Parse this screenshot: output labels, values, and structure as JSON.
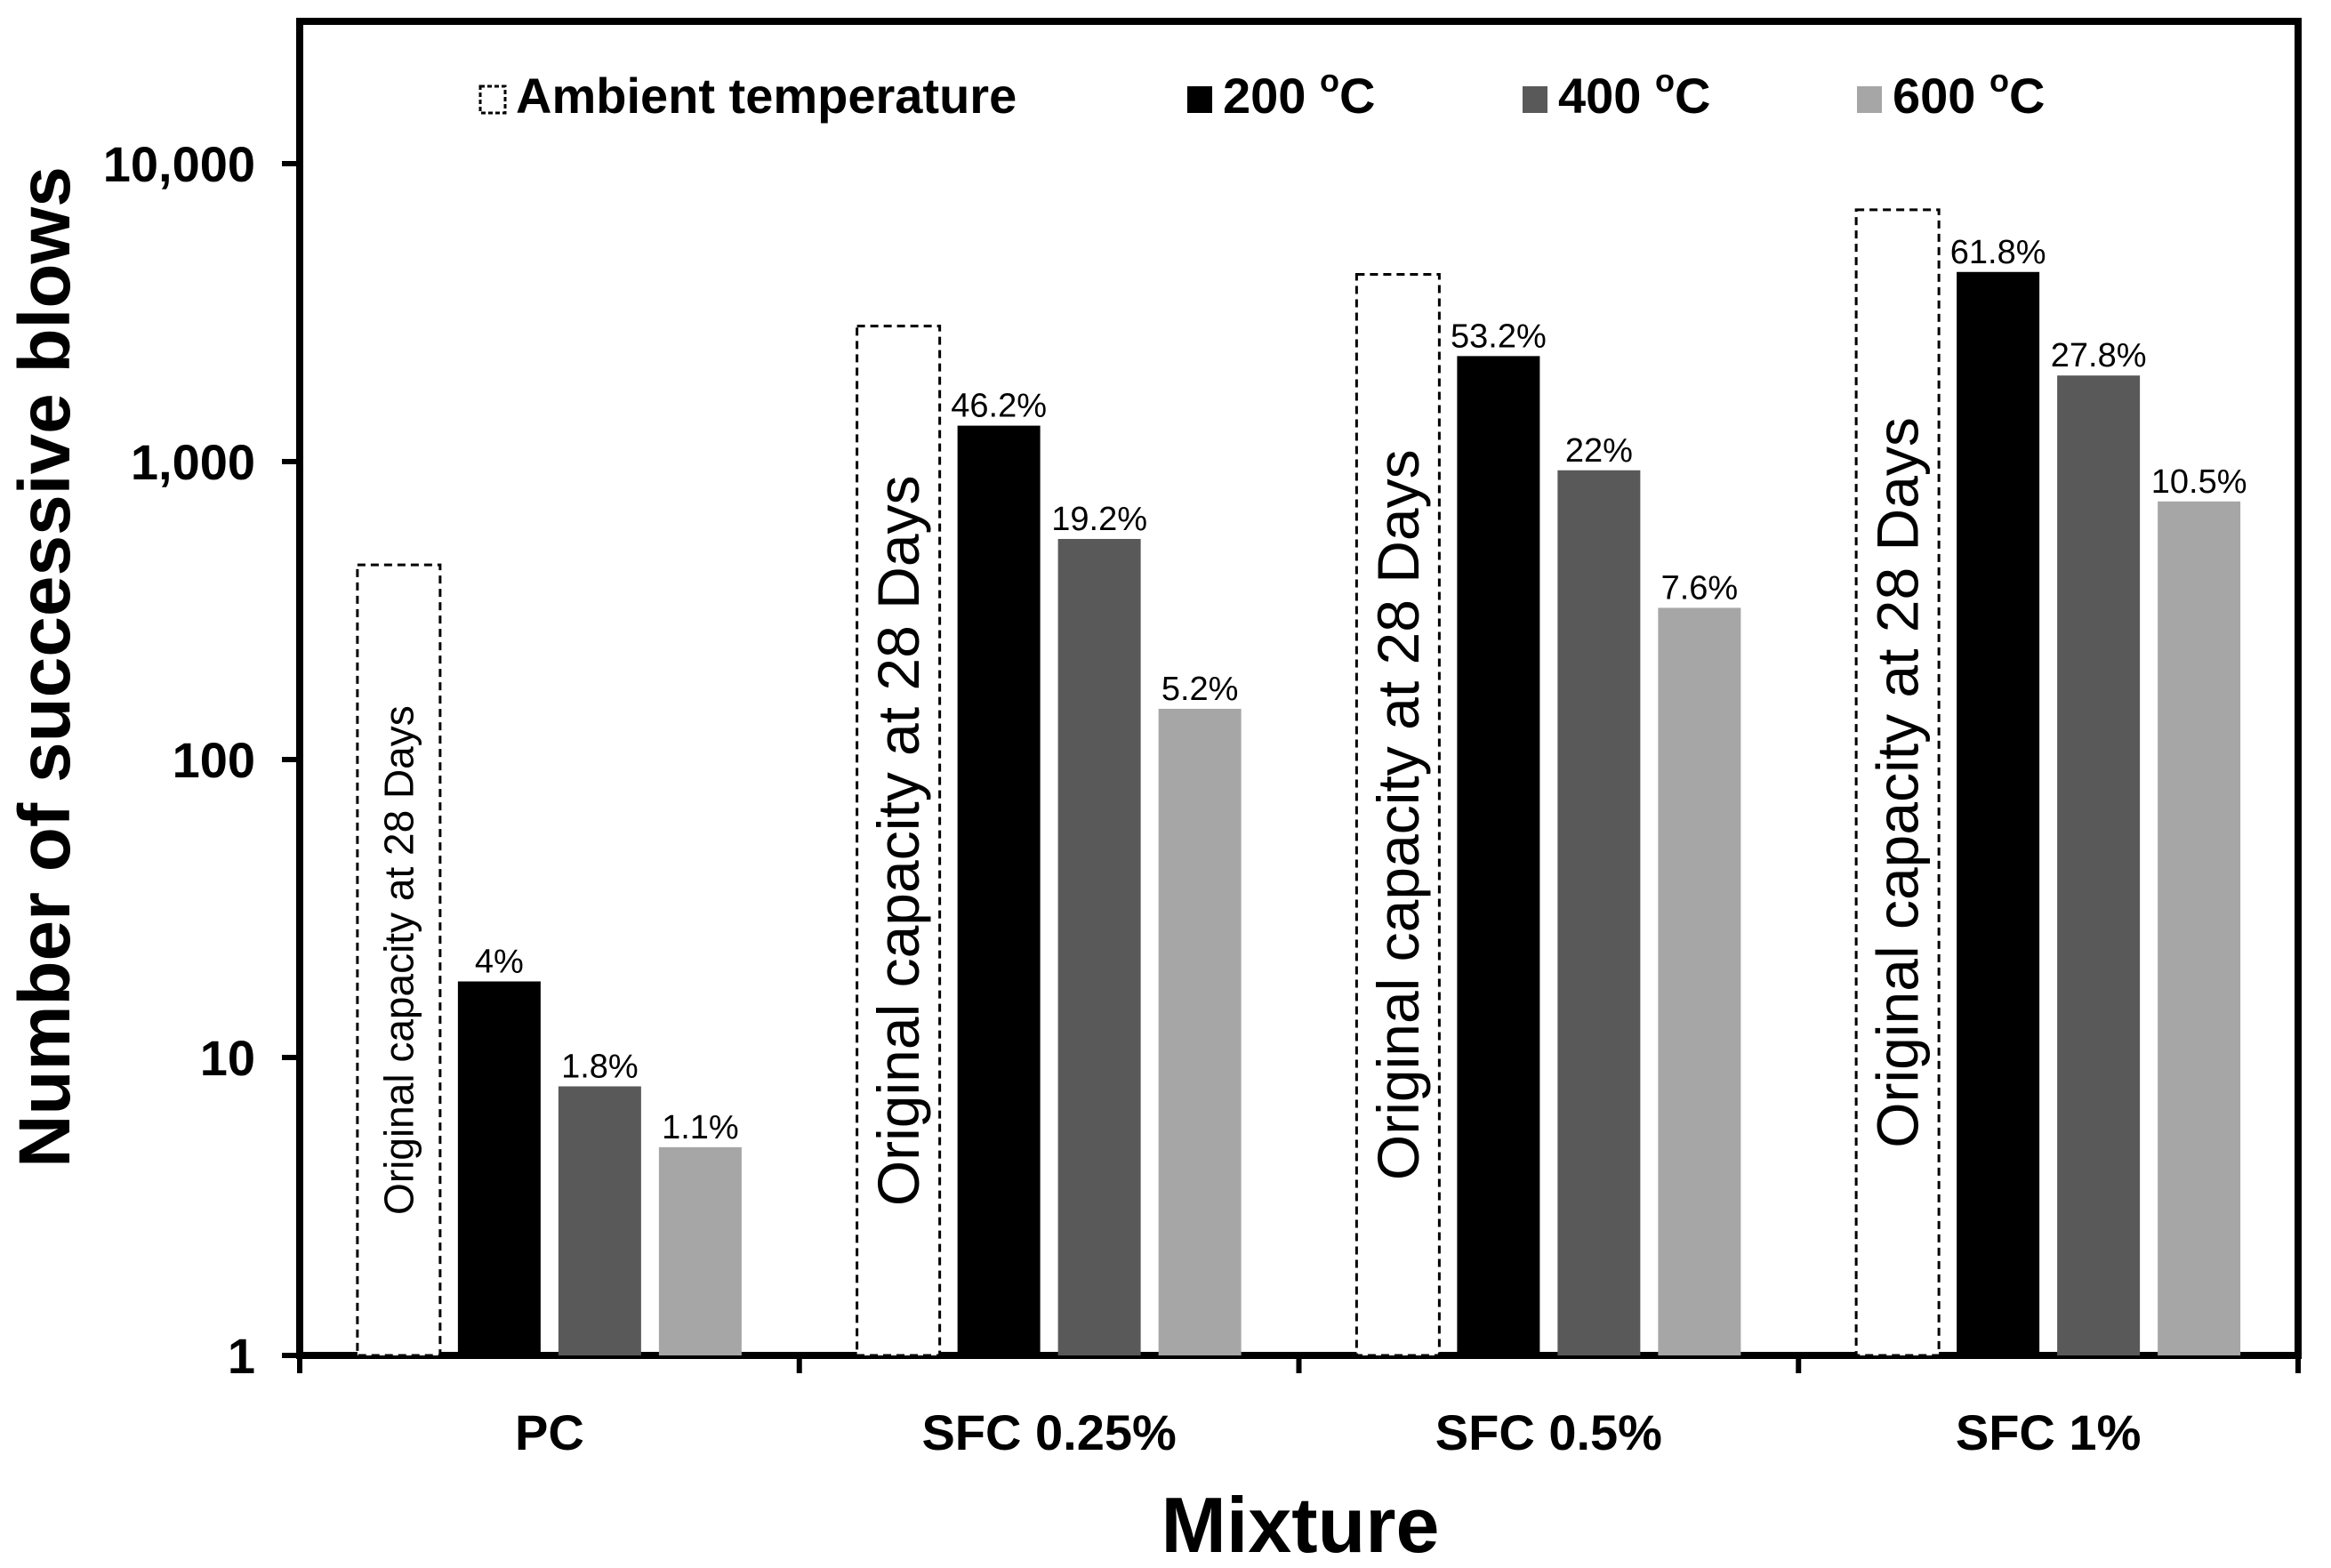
{
  "chart_data": {
    "type": "bar",
    "y_scale": "log",
    "ylim": [
      1,
      30000
    ],
    "yticks": [
      {
        "value": 1,
        "label": "1"
      },
      {
        "value": 10,
        "label": "10"
      },
      {
        "value": 100,
        "label": "100"
      },
      {
        "value": 1000,
        "label": "1,000"
      },
      {
        "value": 10000,
        "label": "10,000"
      }
    ],
    "xlabel": "Mixture",
    "ylabel": "Number of successive blows",
    "categories": [
      "PC",
      "SFC 0.25%",
      "SFC 0.5%",
      "SFC 1%"
    ],
    "legend_position": "top",
    "series": [
      {
        "name": "Ambient temperature",
        "style": "dashed-outline",
        "color": "#ffffff",
        "values": [
          450,
          2850,
          4250,
          7000
        ],
        "annotation": "Original capacity at 28 Days"
      },
      {
        "name": "200",
        "unit_sup": "o",
        "unit": "C",
        "color": "#000000",
        "values": [
          18,
          1320,
          2260,
          4330
        ],
        "labels": [
          "4%",
          "46.2%",
          "53.2%",
          "61.8%"
        ]
      },
      {
        "name": "400",
        "unit_sup": "o",
        "unit": "C",
        "color": "#595959",
        "values": [
          8,
          550,
          935,
          1945
        ],
        "labels": [
          "1.8%",
          "19.2%",
          "22%",
          "27.8%"
        ]
      },
      {
        "name": "600",
        "unit_sup": "o",
        "unit": "C",
        "color": "#a6a6a6",
        "values": [
          5,
          148,
          323,
          735
        ],
        "labels": [
          "1.1%",
          "5.2%",
          "7.6%",
          "10.5%"
        ]
      }
    ]
  }
}
